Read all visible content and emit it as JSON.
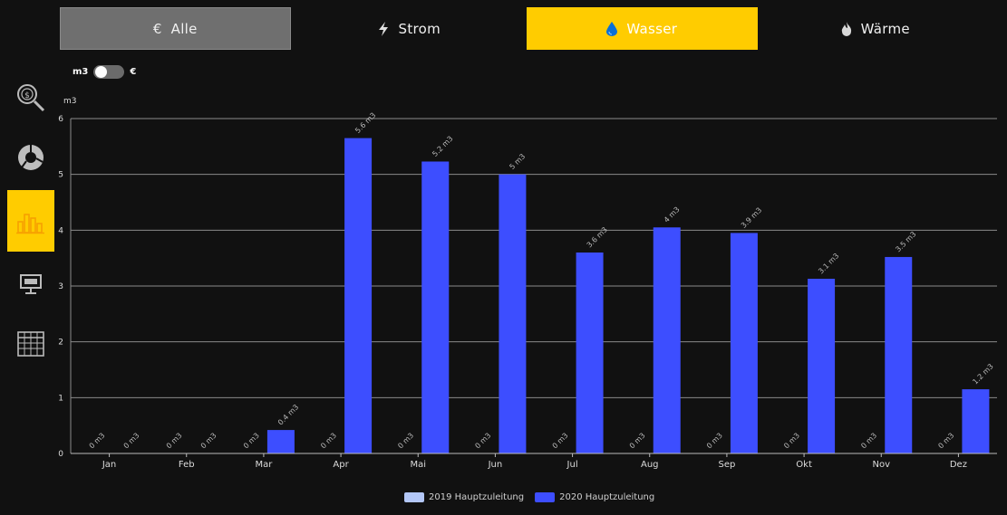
{
  "tabs": [
    {
      "label": "Alle",
      "icon": "euro-icon",
      "glyph": "€",
      "state": "inactive-grey"
    },
    {
      "label": "Strom",
      "icon": "lightning-icon",
      "glyph": "",
      "state": "normal"
    },
    {
      "label": "Wasser",
      "icon": "water-drop-icon",
      "glyph": "",
      "state": "active"
    },
    {
      "label": "Wärme",
      "icon": "flame-icon",
      "glyph": "",
      "state": "normal"
    }
  ],
  "unit_toggle": {
    "left_label": "m3",
    "right_label": "€",
    "selected": "m3"
  },
  "sidebar": {
    "items": [
      {
        "icon": "cost-search-icon"
      },
      {
        "icon": "pie-chart-icon"
      },
      {
        "icon": "bar-chart-icon",
        "active": true
      },
      {
        "icon": "monitor-icon"
      },
      {
        "icon": "table-icon"
      }
    ]
  },
  "colors": {
    "accent": "#ffcc00",
    "series_2019": "#b3c7f7",
    "series_2020": "#3d4eff",
    "grid": "#8a8a8a"
  },
  "chart_data": {
    "type": "bar",
    "ylabel": "m3",
    "ylim": [
      0,
      6
    ],
    "yticks": [
      0,
      1,
      2,
      3,
      4,
      5,
      6
    ],
    "grid": true,
    "legend_position": "bottom",
    "categories": [
      "Jan",
      "Feb",
      "Mar",
      "Apr",
      "Mai",
      "Jun",
      "Jul",
      "Aug",
      "Sep",
      "Okt",
      "Nov",
      "Dez"
    ],
    "series": [
      {
        "name": "2019 Hauptzuleitung",
        "values": [
          0,
          0,
          0,
          0,
          0,
          0,
          0,
          0,
          0,
          0,
          0,
          0
        ],
        "labels": [
          "0 m3",
          "0 m3",
          "0 m3",
          "0 m3",
          "0 m3",
          "0 m3",
          "0 m3",
          "0 m3",
          "0 m3",
          "0 m3",
          "0 m3",
          "0 m3"
        ]
      },
      {
        "name": "2020 Hauptzuleitung",
        "values": [
          0,
          0,
          0.42,
          5.65,
          5.23,
          5.0,
          3.6,
          4.05,
          3.95,
          3.13,
          3.52,
          1.15
        ],
        "labels": [
          "0 m3",
          "0 m3",
          "0.4 m3",
          "5.6 m3",
          "5.2 m3",
          "5 m3",
          "3.6 m3",
          "4 m3",
          "3.9 m3",
          "3.1 m3",
          "3.5 m3",
          "1.2 m3"
        ]
      }
    ]
  }
}
